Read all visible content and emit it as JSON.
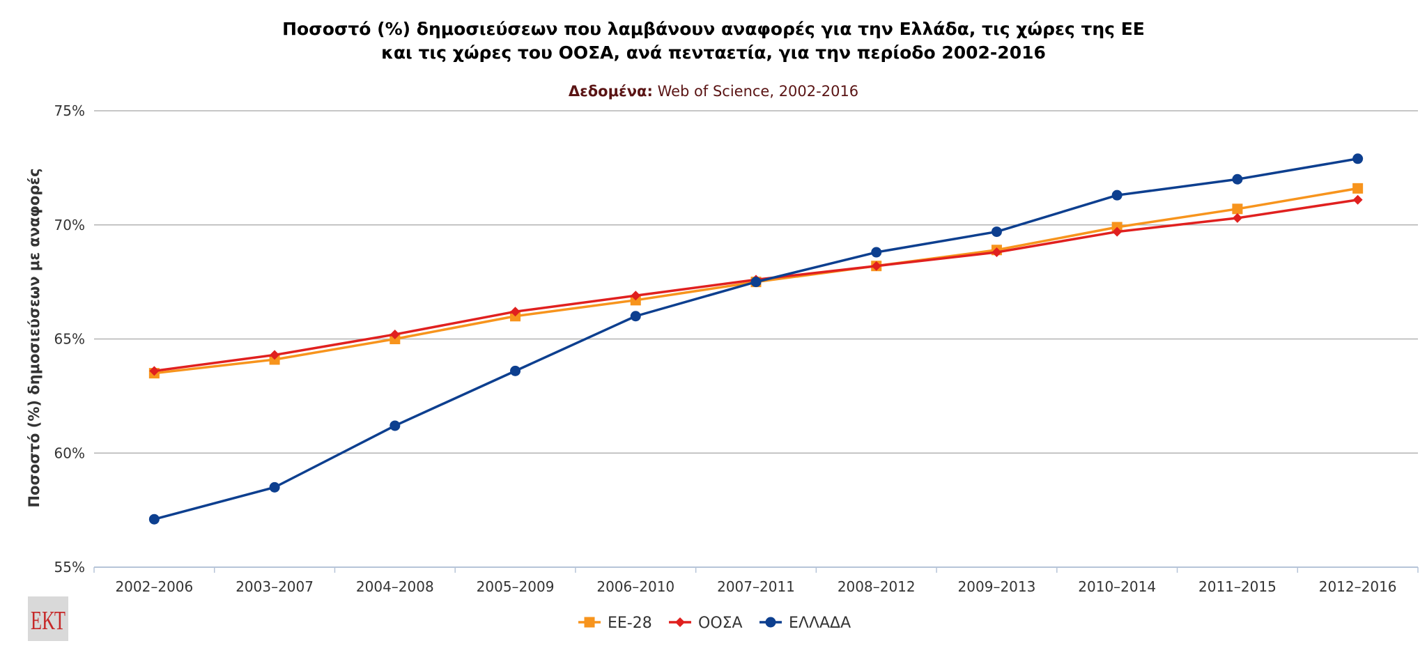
{
  "chart_data": {
    "type": "line",
    "title_line1": "Ποσοστό (%) δημοσιεύσεων που λαμβάνουν αναφορές για την Ελλάδα, τις χώρες της ΕΕ",
    "title_line2": "και τις χώρες του ΟΟΣΑ, ανά πενταετία, για την περίοδο 2002-2016",
    "subtitle_bold": "Δεδομένα:",
    "subtitle_rest": " Web of Science, 2002-2016",
    "ylabel": "Ποσοστό (%) δημοσιεύσεων με αναφορές",
    "xlabel": "",
    "ylim": [
      55,
      75
    ],
    "yticks": [
      "55%",
      "60%",
      "65%",
      "70%",
      "75%"
    ],
    "categories": [
      "2002–2006",
      "2003–2007",
      "2004–2008",
      "2005–2009",
      "2006–2010",
      "2007–2011",
      "2008–2012",
      "2009–2013",
      "2010–2014",
      "2011–2015",
      "2012–2016"
    ],
    "series": [
      {
        "name": "ΕΕ-28",
        "color": "#f7941d",
        "marker": "square",
        "values": [
          63.5,
          64.1,
          65.0,
          66.0,
          66.7,
          67.5,
          68.2,
          68.9,
          69.9,
          70.7,
          71.6
        ]
      },
      {
        "name": "ΟΟΣΑ",
        "color": "#e0201f",
        "marker": "diamond",
        "values": [
          63.6,
          64.3,
          65.2,
          66.2,
          66.9,
          67.6,
          68.2,
          68.8,
          69.7,
          70.3,
          71.1
        ]
      },
      {
        "name": "ΕΛΛΑΔΑ",
        "color": "#0d3f8f",
        "marker": "circle",
        "values": [
          57.1,
          58.5,
          61.2,
          63.6,
          66.0,
          67.5,
          68.8,
          69.7,
          71.3,
          72.0,
          72.9
        ]
      }
    ],
    "grid": true,
    "legend_position": "bottom-center"
  },
  "logo": {
    "text": "ΕΚΤ"
  }
}
